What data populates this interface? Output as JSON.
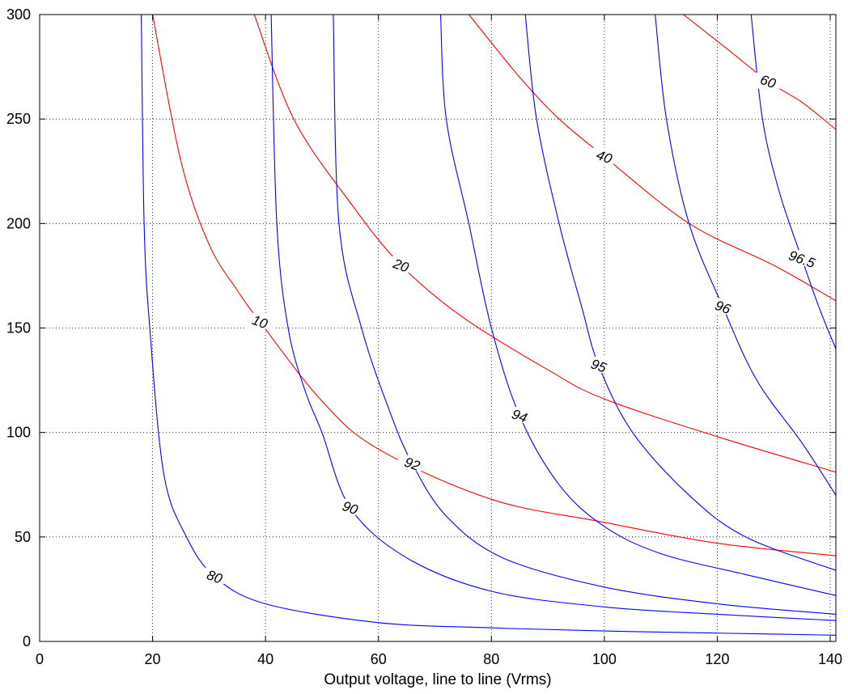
{
  "chart_data": {
    "type": "line",
    "subtype": "contour",
    "title": "",
    "xlabel": "Output voltage, line to line (Vrms)",
    "ylabel": "",
    "xlim": [
      0,
      141
    ],
    "ylim": [
      0,
      300
    ],
    "grid": true,
    "xticks": [
      0,
      20,
      40,
      60,
      80,
      100,
      120,
      140
    ],
    "yticks": [
      0,
      50,
      100,
      150,
      200,
      250,
      300
    ],
    "colors": {
      "efficiency": "#0000ff",
      "power": "#ff0000",
      "axis": "#000000",
      "grid": "#000000"
    },
    "efficiency_contours": [
      {
        "label": "80",
        "label_at": [
          31,
          31
        ],
        "points": [
          [
            18,
            300
          ],
          [
            18.5,
            200
          ],
          [
            19.5,
            150
          ],
          [
            22,
            80
          ],
          [
            26,
            50
          ],
          [
            31,
            31
          ],
          [
            40,
            18
          ],
          [
            60,
            9
          ],
          [
            80,
            6.5
          ],
          [
            100,
            5
          ],
          [
            120,
            4
          ],
          [
            141,
            3
          ]
        ]
      },
      {
        "label": "90",
        "label_at": [
          55,
          64
        ],
        "points": [
          [
            41,
            300
          ],
          [
            42,
            200
          ],
          [
            44,
            150
          ],
          [
            47,
            120
          ],
          [
            50,
            100
          ],
          [
            55,
            64
          ],
          [
            65,
            40
          ],
          [
            80,
            24
          ],
          [
            100,
            16.5
          ],
          [
            120,
            13
          ],
          [
            141,
            10
          ]
        ]
      },
      {
        "label": "92",
        "label_at": [
          66,
          85
        ],
        "points": [
          [
            52,
            300
          ],
          [
            53,
            200
          ],
          [
            57,
            150
          ],
          [
            62,
            110
          ],
          [
            66,
            85
          ],
          [
            72,
            60
          ],
          [
            82,
            40
          ],
          [
            100,
            26
          ],
          [
            120,
            18
          ],
          [
            141,
            13
          ]
        ]
      },
      {
        "label": "94",
        "label_at": [
          85,
          108
        ],
        "points": [
          [
            71,
            300
          ],
          [
            72,
            250
          ],
          [
            76,
            200
          ],
          [
            80,
            150
          ],
          [
            85,
            108
          ],
          [
            92,
            75
          ],
          [
            100,
            55
          ],
          [
            110,
            42
          ],
          [
            125,
            32
          ],
          [
            141,
            22
          ]
        ]
      },
      {
        "label": "95",
        "label_at": [
          99,
          132
        ],
        "points": [
          [
            86,
            300
          ],
          [
            88,
            250
          ],
          [
            92,
            200
          ],
          [
            96,
            160
          ],
          [
            99,
            132
          ],
          [
            105,
            100
          ],
          [
            115,
            70
          ],
          [
            125,
            50
          ],
          [
            141,
            34
          ]
        ]
      },
      {
        "label": "96",
        "label_at": [
          121,
          160
        ],
        "points": [
          [
            109,
            300
          ],
          [
            111,
            250
          ],
          [
            115,
            200
          ],
          [
            121,
            160
          ],
          [
            127,
            125
          ],
          [
            135,
            95
          ],
          [
            141,
            70
          ]
        ]
      },
      {
        "label": "96.5",
        "label_at": [
          135,
          183
        ],
        "points": [
          [
            126,
            300
          ],
          [
            128,
            250
          ],
          [
            131,
            215
          ],
          [
            135,
            183
          ],
          [
            138,
            160
          ],
          [
            141,
            140
          ]
        ]
      }
    ],
    "power_contours": [
      {
        "label": "10",
        "label_at": [
          39,
          153
        ],
        "points": [
          [
            20,
            300
          ],
          [
            25,
            230
          ],
          [
            30,
            190
          ],
          [
            35,
            168
          ],
          [
            39,
            153
          ],
          [
            50,
            115
          ],
          [
            60,
            92
          ],
          [
            80,
            68
          ],
          [
            100,
            57
          ],
          [
            120,
            47
          ],
          [
            141,
            41
          ]
        ]
      },
      {
        "label": "20",
        "label_at": [
          64,
          180
        ],
        "points": [
          [
            38,
            300
          ],
          [
            45,
            250
          ],
          [
            55,
            210
          ],
          [
            64,
            180
          ],
          [
            75,
            155
          ],
          [
            90,
            130
          ],
          [
            100,
            116
          ],
          [
            120,
            98
          ],
          [
            141,
            81
          ]
        ]
      },
      {
        "label": "40",
        "label_at": [
          100,
          232
        ],
        "points": [
          [
            76,
            300
          ],
          [
            85,
            270
          ],
          [
            92,
            250
          ],
          [
            100,
            232
          ],
          [
            115,
            200
          ],
          [
            130,
            180
          ],
          [
            141,
            163
          ]
        ]
      },
      {
        "label": "60",
        "label_at": [
          129,
          268
        ],
        "points": [
          [
            114,
            300
          ],
          [
            122,
            283
          ],
          [
            129,
            268
          ],
          [
            135,
            258
          ],
          [
            141,
            245
          ]
        ]
      }
    ]
  }
}
